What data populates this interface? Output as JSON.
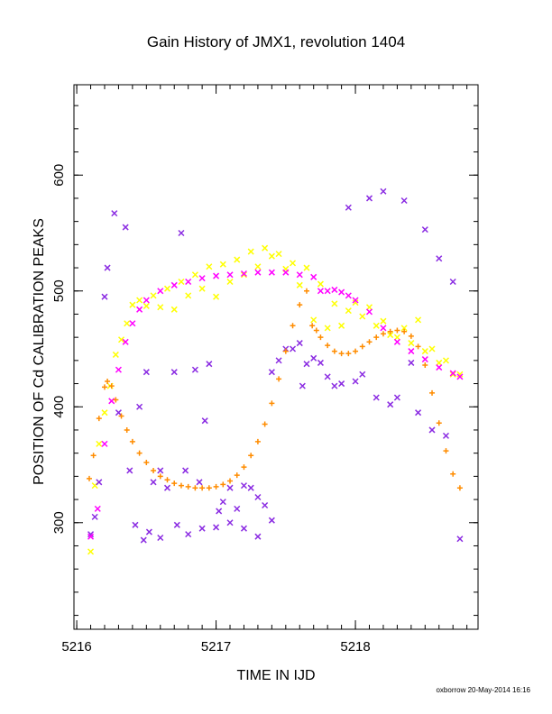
{
  "chart_data": {
    "type": "scatter",
    "title": "Gain History of JMX1, revolution 1404",
    "xlabel": "TIME IN IJD",
    "ylabel": "POSITION OF Cd CALIBRATION PEAKS",
    "xlim": [
      5215.98,
      5218.88
    ],
    "ylim": [
      208,
      678
    ],
    "x_ticks": [
      5216,
      5217,
      5218
    ],
    "y_ticks": [
      300,
      400,
      500,
      600
    ],
    "grid": false,
    "series": [
      {
        "color": "#ffff00",
        "marker": "x",
        "x": [
          5216.1,
          5216.13,
          5216.16,
          5216.2,
          5216.24,
          5216.28,
          5216.32,
          5216.36,
          5216.4,
          5216.45,
          5216.5,
          5216.55,
          5216.6,
          5216.65,
          5216.7,
          5216.75,
          5216.8,
          5216.85,
          5216.9,
          5216.95,
          5217.0,
          5217.05,
          5217.1,
          5217.15,
          5217.2,
          5217.25,
          5217.3,
          5217.35,
          5217.4,
          5217.45,
          5217.5,
          5217.55,
          5217.6,
          5217.65,
          5217.7,
          5217.75,
          5217.8,
          5217.85,
          5217.9,
          5217.95,
          5218.0,
          5218.05,
          5218.1,
          5218.15,
          5218.2,
          5218.25,
          5218.3,
          5218.35,
          5218.4,
          5218.45,
          5218.5,
          5218.55,
          5218.6,
          5218.65,
          5218.7,
          5218.75
        ],
        "y": [
          275,
          332,
          368,
          395,
          418,
          445,
          458,
          472,
          488,
          492,
          487,
          496,
          486,
          502,
          484,
          508,
          496,
          514,
          502,
          521,
          495,
          523,
          508,
          527,
          514,
          534,
          521,
          537,
          530,
          532,
          519,
          524,
          505,
          520,
          475,
          506,
          468,
          489,
          470,
          483,
          490,
          478,
          486,
          470,
          474,
          462,
          460,
          468,
          455,
          475,
          448,
          450,
          438,
          440,
          428,
          428
        ]
      },
      {
        "color": "#8a2be2",
        "marker": "x",
        "x": [
          5216.1,
          5216.13,
          5216.16,
          5216.2,
          5216.22,
          5216.27,
          5216.3,
          5216.35,
          5216.38,
          5216.42,
          5216.45,
          5216.48,
          5216.5,
          5216.52,
          5216.55,
          5216.6,
          5216.6,
          5216.65,
          5216.7,
          5216.72,
          5216.75,
          5216.78,
          5216.8,
          5216.85,
          5216.88,
          5216.9,
          5216.92,
          5216.95,
          5217.0,
          5217.02,
          5217.05,
          5217.1,
          5217.1,
          5217.15,
          5217.2,
          5217.2,
          5217.25,
          5217.3,
          5217.3,
          5217.35,
          5217.4,
          5217.4,
          5217.45,
          5217.5,
          5217.55,
          5217.6,
          5217.62,
          5217.65,
          5217.7,
          5217.75,
          5217.8,
          5217.85,
          5217.9,
          5217.95,
          5218.0,
          5218.05,
          5218.1,
          5218.15,
          5218.2,
          5218.25,
          5218.3,
          5218.35,
          5218.4,
          5218.45,
          5218.5,
          5218.55,
          5218.6,
          5218.65,
          5218.7,
          5218.75
        ],
        "y": [
          290,
          305,
          335,
          495,
          520,
          567,
          395,
          555,
          345,
          298,
          400,
          285,
          430,
          292,
          335,
          345,
          287,
          330,
          430,
          298,
          550,
          345,
          290,
          432,
          335,
          295,
          388,
          437,
          296,
          310,
          318,
          300,
          330,
          312,
          332,
          295,
          330,
          322,
          288,
          315,
          302,
          430,
          440,
          450,
          450,
          455,
          418,
          437,
          442,
          438,
          426,
          418,
          420,
          572,
          422,
          428,
          580,
          408,
          586,
          402,
          408,
          578,
          438,
          395,
          553,
          380,
          528,
          375,
          508,
          286
        ]
      },
      {
        "color": "#ff00ff",
        "marker": "x",
        "x": [
          5216.1,
          5216.15,
          5216.2,
          5216.25,
          5216.3,
          5216.35,
          5216.4,
          5216.45,
          5216.5,
          5216.6,
          5216.7,
          5216.8,
          5216.9,
          5217.0,
          5217.1,
          5217.2,
          5217.3,
          5217.4,
          5217.5,
          5217.6,
          5217.7,
          5217.75,
          5217.8,
          5217.85,
          5217.9,
          5217.95,
          5218.0,
          5218.1,
          5218.2,
          5218.3,
          5218.4,
          5218.5,
          5218.6,
          5218.7,
          5218.75
        ],
        "y": [
          288,
          312,
          368,
          405,
          432,
          456,
          472,
          484,
          492,
          500,
          505,
          508,
          511,
          513,
          514,
          515,
          516,
          516,
          516,
          514,
          512,
          500,
          500,
          501,
          499,
          496,
          492,
          482,
          468,
          456,
          448,
          441,
          434,
          429,
          426
        ]
      },
      {
        "color": "#ff8c00",
        "marker": "+",
        "x": [
          5216.09,
          5216.12,
          5216.16,
          5216.2,
          5216.22,
          5216.25,
          5216.28,
          5216.32,
          5216.36,
          5216.4,
          5216.45,
          5216.5,
          5216.55,
          5216.6,
          5216.65,
          5216.7,
          5216.75,
          5216.8,
          5216.85,
          5216.9,
          5216.95,
          5217.0,
          5217.05,
          5217.1,
          5217.15,
          5217.2,
          5217.25,
          5217.3,
          5217.35,
          5217.4,
          5217.45,
          5217.5,
          5217.55,
          5217.6,
          5217.65,
          5217.69,
          5217.72,
          5217.75,
          5217.8,
          5217.85,
          5217.9,
          5217.95,
          5218.0,
          5218.05,
          5218.1,
          5218.15,
          5218.2,
          5218.25,
          5218.3,
          5218.35,
          5218.4,
          5218.45,
          5218.5,
          5218.55,
          5218.6,
          5218.65,
          5218.7,
          5218.75
        ],
        "y": [
          338,
          358,
          390,
          417,
          422,
          418,
          406,
          392,
          380,
          370,
          360,
          352,
          345,
          340,
          337,
          334,
          332,
          331,
          330,
          330,
          330,
          331,
          333,
          336,
          341,
          348,
          358,
          370,
          385,
          403,
          424,
          448,
          470,
          488,
          500,
          470,
          466,
          460,
          453,
          448,
          446,
          446,
          448,
          452,
          456,
          460,
          463,
          465,
          466,
          465,
          461,
          452,
          436,
          412,
          386,
          362,
          342,
          330
        ]
      }
    ]
  },
  "footer": "oxborrow 20-May-2014 16:16"
}
